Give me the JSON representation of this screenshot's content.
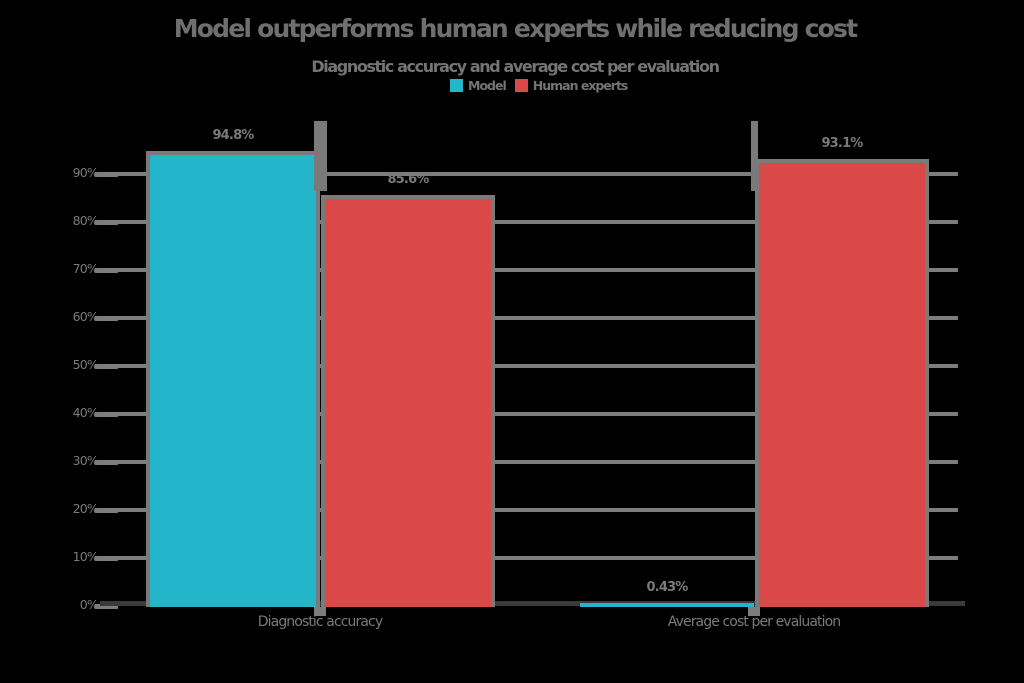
{
  "title": "Model outperforms human experts while reducing cost",
  "subtitle": "Diagnostic accuracy and average cost per evaluation",
  "legend": {
    "position": "top",
    "items": [
      {
        "label": "Model",
        "color": "#23b5c9"
      },
      {
        "label": "Human experts",
        "color": "#da4848"
      }
    ]
  },
  "colors": {
    "series_cyan": "#23b5c9",
    "series_red": "#da4848",
    "grid_gray": "#7d7d7d",
    "stroke_gray": "#7a7a7a",
    "text_gray": "#6f6f6f",
    "axis_dark": "#3a3a3a",
    "background": "#000000"
  },
  "chart_data": {
    "type": "bar",
    "title": "Model outperforms human experts while reducing cost",
    "subtitle": "Diagnostic accuracy and average cost per evaluation",
    "categories": [
      "Diagnostic accuracy",
      "Average cost per evaluation"
    ],
    "series": [
      {
        "name": "Model",
        "color": "#23b5c9",
        "values": [
          94.8,
          0.43
        ],
        "labels": [
          "94.8%",
          "0.43%"
        ]
      },
      {
        "name": "Human experts",
        "color": "#da4848",
        "values": [
          85.6,
          93.1
        ],
        "labels": [
          "85.6%",
          "93.1%"
        ]
      }
    ],
    "error_bars": [
      {
        "category_index": 0,
        "low": 86.5,
        "high": 101.0
      },
      {
        "category_index": 1,
        "low": 86.5,
        "high": 101.0
      }
    ],
    "xlabel": "",
    "ylabel": "",
    "ylim": [
      0,
      100
    ],
    "yticks": [
      0,
      10,
      20,
      30,
      40,
      50,
      60,
      70,
      80,
      90
    ],
    "ytick_labels": [
      "0%",
      "10%",
      "20%",
      "30%",
      "40%",
      "50%",
      "60%",
      "70%",
      "80%",
      "90%"
    ],
    "grid": true,
    "legend_position": "top"
  }
}
